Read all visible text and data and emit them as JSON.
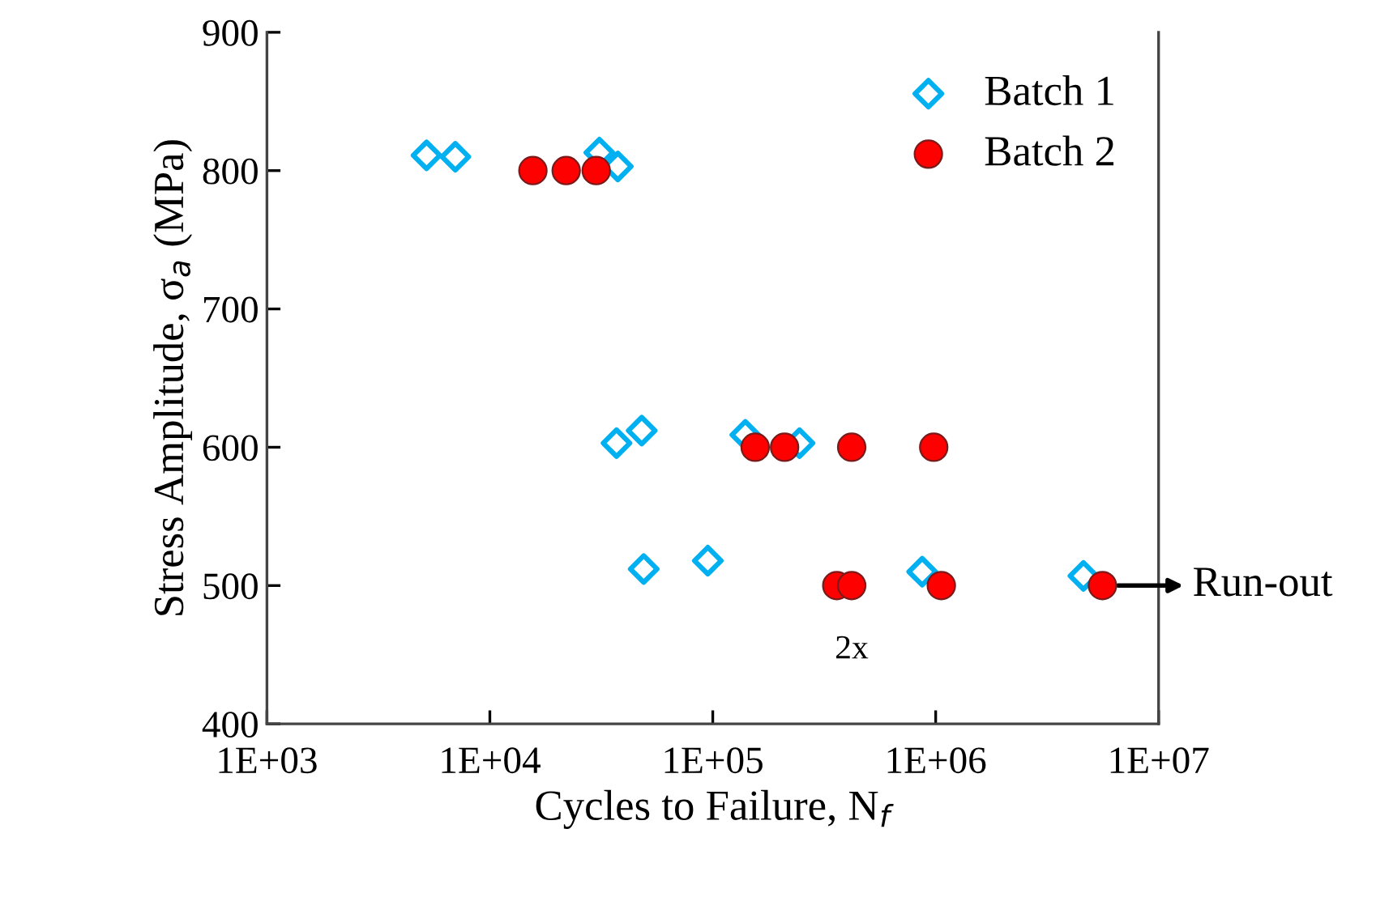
{
  "chart_data": {
    "type": "scatter",
    "xlabel": "Cycles to Failure, N$_{f}$",
    "ylabel": "Stress Amplitude, σ$_{a}$ (MPa)",
    "log": "x",
    "xlim": [
      1000,
      10000000
    ],
    "xticks": [
      {
        "value": 1000,
        "label": "1E+03"
      },
      {
        "value": 10000,
        "label": "1E+04"
      },
      {
        "value": 100000,
        "label": "1E+05"
      },
      {
        "value": 1000000,
        "label": "1E+06"
      },
      {
        "value": 10000000,
        "label": "1E+07"
      }
    ],
    "ylim": [
      400,
      900
    ],
    "yticks": [
      400,
      500,
      600,
      700,
      800,
      900
    ],
    "grid": false,
    "legend": "top right",
    "series": [
      {
        "name": "Batch 1",
        "color": "#00b0f0",
        "marker": "diamond",
        "x": [
          5200,
          7000,
          31000,
          37500,
          37000,
          48000,
          49000,
          95000,
          140000,
          245000,
          870000,
          4600000
        ],
        "values": [
          811,
          810,
          813,
          803,
          603,
          612,
          512,
          518,
          609,
          603,
          510,
          507
        ]
      },
      {
        "name": "Batch 2",
        "color": "#ff0000",
        "marker": "circle",
        "x": [
          15600,
          22000,
          30000,
          155000,
          210000,
          420000,
          980000,
          360000,
          420000,
          1060000,
          5600000
        ],
        "values": [
          800,
          800,
          800,
          600,
          600,
          600,
          600,
          500,
          500,
          500,
          500
        ]
      }
    ],
    "annotations": [
      {
        "text": "Run-out",
        "x": 5600000,
        "y": 500
      },
      {
        "text": "2x",
        "x": 420000,
        "y": 500
      }
    ]
  }
}
